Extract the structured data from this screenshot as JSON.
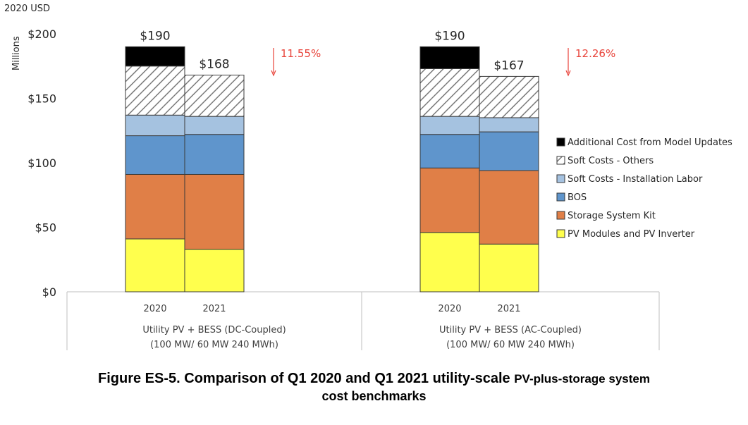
{
  "chart_data": {
    "type": "stacked-bar",
    "title": "Figure ES-5. Comparison of Q1 2020 and Q1 2021 utility-scale PV-plus-storage system cost benchmarks",
    "unit_label": "2020 USD",
    "ylabel": "Millions",
    "ylim": [
      0,
      200
    ],
    "yticks": [
      "$0",
      "$50",
      "$100",
      "$150",
      "$200"
    ],
    "ytick_values": [
      0,
      50,
      100,
      150,
      200
    ],
    "groups": [
      {
        "label_line1": "Utility PV + BESS (DC-Coupled)",
        "label_line2": "(100 MW/ 60 MW 240 MWh)",
        "bars": [
          {
            "year": "2020",
            "total_label": "$190",
            "segments": [
              41,
              50,
              30,
              16,
              38,
              15
            ]
          },
          {
            "year": "2021",
            "total_label": "$168",
            "segments": [
              33,
              58,
              31,
              14,
              32,
              0
            ]
          }
        ],
        "change": "11.55%"
      },
      {
        "label_line1": "Utility PV + BESS (AC-Coupled)",
        "label_line2": "(100 MW/ 60 MW 240 MWh)",
        "bars": [
          {
            "year": "2020",
            "total_label": "$190",
            "segments": [
              46,
              50,
              26,
              14,
              37,
              17
            ]
          },
          {
            "year": "2021",
            "total_label": "$167",
            "segments": [
              37,
              57,
              30,
              11,
              32,
              0
            ]
          }
        ],
        "change": "12.26%"
      }
    ],
    "series": [
      {
        "name": "PV Modules and PV Inverter",
        "color": "#ffff4d"
      },
      {
        "name": "Storage System Kit",
        "color": "#e07f47"
      },
      {
        "name": "BOS",
        "color": "#5f95cc"
      },
      {
        "name": "Soft Costs - Installation Labor",
        "color": "#a5c2e0"
      },
      {
        "name": "Soft Costs - Others",
        "color": "hatch"
      },
      {
        "name": "Additional Cost from Model Updates",
        "color": "#000000"
      }
    ],
    "legend_order": [
      5,
      4,
      3,
      2,
      1,
      0
    ],
    "legend_position": "right"
  },
  "caption": {
    "line1_a": "Figure ES-5. Comparison of Q1 2020 and Q1 2021 utility-scale",
    "line1_b": "PV-plus-storage system",
    "line2": "cost benchmarks"
  }
}
